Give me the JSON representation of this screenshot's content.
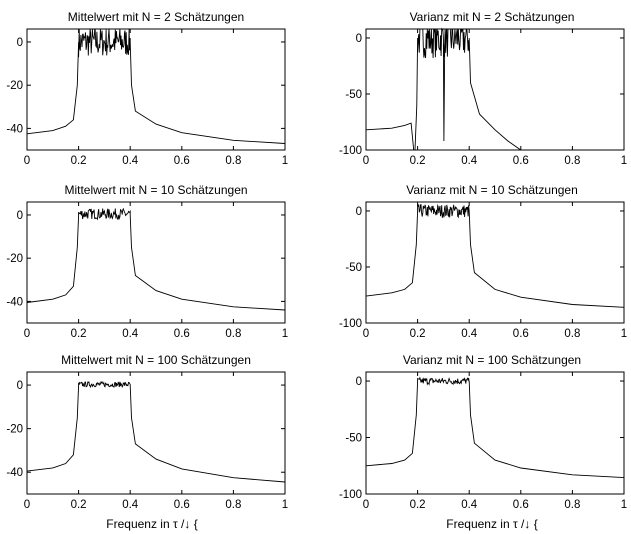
{
  "chart_data": [
    {
      "type": "line",
      "title": "Mittelwert mit N = 2 Schätzungen",
      "xlabel": "",
      "xlim": [
        0,
        1
      ],
      "ylim": [
        -50,
        6
      ],
      "xticks": [
        "0",
        "0.2",
        "0.4",
        "0.6",
        "0.8",
        "1"
      ],
      "yticks": [
        "0",
        "-20",
        "-40"
      ],
      "points": [
        [
          0,
          -42.5
        ],
        [
          0.1,
          -41
        ],
        [
          0.15,
          -39
        ],
        [
          0.18,
          -36
        ],
        [
          0.195,
          -20
        ],
        [
          0.2,
          0
        ],
        [
          0.3,
          0
        ],
        [
          0.4,
          0
        ],
        [
          0.405,
          -20
        ],
        [
          0.42,
          -32
        ],
        [
          0.5,
          -38
        ],
        [
          0.6,
          -42
        ],
        [
          0.8,
          -45.5
        ],
        [
          1,
          -47
        ]
      ],
      "band": {
        "x": [
          0.2,
          0.4
        ],
        "center": 0,
        "amplitude": 7
      }
    },
    {
      "type": "line",
      "title": "Varianz mit N = 2 Schätzungen",
      "xlabel": "",
      "xlim": [
        0,
        1
      ],
      "ylim": [
        -100,
        8
      ],
      "xticks": [
        "0",
        "0.2",
        "0.4",
        "0.6",
        "0.8",
        "1"
      ],
      "yticks": [
        "0",
        "-50",
        "-100"
      ],
      "points": [
        [
          0,
          -82
        ],
        [
          0.1,
          -80.5
        ],
        [
          0.15,
          -78
        ],
        [
          0.175,
          -76
        ],
        [
          0.185,
          -100
        ],
        [
          0.19,
          -100
        ],
        [
          0.197,
          -60
        ],
        [
          0.2,
          0
        ],
        [
          0.3,
          0
        ],
        [
          0.4,
          0
        ],
        [
          0.405,
          -40
        ],
        [
          0.44,
          -68
        ],
        [
          0.5,
          -82
        ],
        [
          0.55,
          -92
        ],
        [
          0.6,
          -100
        ],
        [
          1,
          -100
        ]
      ],
      "band": {
        "x": [
          0.2,
          0.4
        ],
        "center": 0,
        "amplitude": 18
      }
    },
    {
      "type": "line",
      "title": "Mittelwert mit N = 10 Schätzungen",
      "xlabel": "",
      "xlim": [
        0,
        1
      ],
      "ylim": [
        -50,
        6
      ],
      "xticks": [
        "0",
        "0.2",
        "0.4",
        "0.6",
        "0.8",
        "1"
      ],
      "yticks": [
        "0",
        "-20",
        "-40"
      ],
      "points": [
        [
          0,
          -40.5
        ],
        [
          0.1,
          -39
        ],
        [
          0.15,
          -37
        ],
        [
          0.18,
          -33
        ],
        [
          0.195,
          -15
        ],
        [
          0.2,
          0
        ],
        [
          0.3,
          0
        ],
        [
          0.4,
          0
        ],
        [
          0.405,
          -15
        ],
        [
          0.42,
          -28
        ],
        [
          0.5,
          -35
        ],
        [
          0.6,
          -39
        ],
        [
          0.8,
          -42.5
        ],
        [
          1,
          -44
        ]
      ],
      "band": {
        "x": [
          0.2,
          0.4
        ],
        "center": 0.5,
        "amplitude": 2.5
      }
    },
    {
      "type": "line",
      "title": "Varianz mit N = 10 Schätzungen",
      "xlabel": "",
      "xlim": [
        0,
        1
      ],
      "ylim": [
        -100,
        8
      ],
      "xticks": [
        "0",
        "0.2",
        "0.4",
        "0.6",
        "0.8",
        "1"
      ],
      "yticks": [
        "0",
        "-50",
        "-100"
      ],
      "points": [
        [
          0,
          -76
        ],
        [
          0.1,
          -73
        ],
        [
          0.15,
          -70
        ],
        [
          0.18,
          -64
        ],
        [
          0.195,
          -30
        ],
        [
          0.2,
          0
        ],
        [
          0.3,
          0
        ],
        [
          0.4,
          0
        ],
        [
          0.405,
          -30
        ],
        [
          0.42,
          -55
        ],
        [
          0.5,
          -70
        ],
        [
          0.6,
          -77
        ],
        [
          0.8,
          -83.5
        ],
        [
          1,
          -86
        ]
      ],
      "band": {
        "x": [
          0.2,
          0.4
        ],
        "center": 0,
        "amplitude": 6
      }
    },
    {
      "type": "line",
      "title": "Mittelwert mit N = 100 Schätzungen",
      "xlabel": "Frequenz in τ /↓ {",
      "xlim": [
        0,
        1
      ],
      "ylim": [
        -50,
        6
      ],
      "xticks": [
        "0",
        "0.2",
        "0.4",
        "0.6",
        "0.8",
        "1"
      ],
      "yticks": [
        "0",
        "-20",
        "-40"
      ],
      "points": [
        [
          0,
          -39.5
        ],
        [
          0.1,
          -38
        ],
        [
          0.15,
          -36
        ],
        [
          0.18,
          -32
        ],
        [
          0.195,
          -15
        ],
        [
          0.2,
          0
        ],
        [
          0.3,
          0
        ],
        [
          0.4,
          0
        ],
        [
          0.405,
          -15
        ],
        [
          0.42,
          -27
        ],
        [
          0.5,
          -34
        ],
        [
          0.6,
          -38.5
        ],
        [
          0.8,
          -42.5
        ],
        [
          1,
          -44.5
        ]
      ],
      "band": {
        "x": [
          0.2,
          0.4
        ],
        "center": 0.3,
        "amplitude": 1.2
      }
    },
    {
      "type": "line",
      "title": "Varianz mit N = 100 Schätzungen",
      "xlabel": "Frequenz in τ /↓ {",
      "xlim": [
        0,
        1
      ],
      "ylim": [
        -100,
        8
      ],
      "xticks": [
        "0",
        "0.2",
        "0.4",
        "0.6",
        "0.8",
        "1"
      ],
      "yticks": [
        "0",
        "-50",
        "-100"
      ],
      "points": [
        [
          0,
          -75
        ],
        [
          0.1,
          -73
        ],
        [
          0.15,
          -70
        ],
        [
          0.18,
          -64
        ],
        [
          0.195,
          -30
        ],
        [
          0.2,
          0
        ],
        [
          0.3,
          0
        ],
        [
          0.4,
          0
        ],
        [
          0.405,
          -30
        ],
        [
          0.42,
          -55
        ],
        [
          0.5,
          -70
        ],
        [
          0.6,
          -77
        ],
        [
          0.8,
          -83
        ],
        [
          1,
          -85.5
        ]
      ],
      "band": {
        "x": [
          0.2,
          0.4
        ],
        "center": 0,
        "amplitude": 3
      }
    }
  ]
}
